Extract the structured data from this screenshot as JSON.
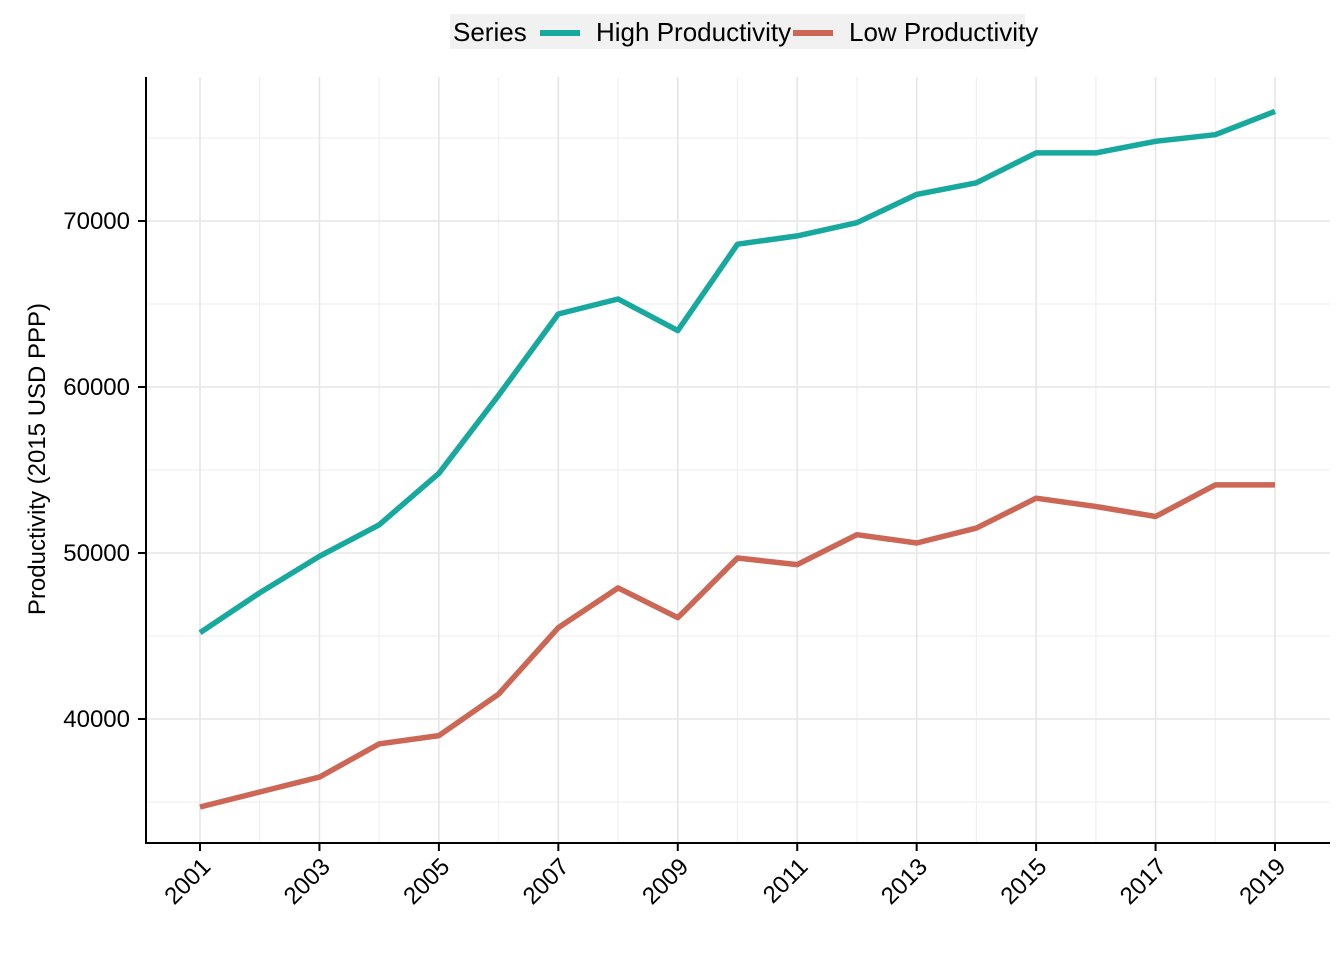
{
  "chart_data": {
    "type": "line",
    "title": "",
    "xlabel": "",
    "ylabel": "Productivity (2015 USD PPP)",
    "x": [
      2001,
      2002,
      2003,
      2004,
      2005,
      2006,
      2007,
      2008,
      2009,
      2010,
      2011,
      2012,
      2013,
      2014,
      2015,
      2016,
      2017,
      2018,
      2019
    ],
    "xticks": [
      2001,
      2003,
      2005,
      2007,
      2009,
      2011,
      2013,
      2015,
      2017,
      2019
    ],
    "xtick_labels": [
      "2001",
      "2003",
      "2005",
      "2007",
      "2009",
      "2011",
      "2013",
      "2015",
      "2017",
      "2019"
    ],
    "yticks": [
      40000,
      50000,
      60000,
      70000
    ],
    "ytick_labels": [
      "40000",
      "50000",
      "60000",
      "70000"
    ],
    "xlim": [
      2000.55,
      2019.45
    ],
    "ylim": [
      34250,
      80500
    ],
    "grid": true,
    "legend": {
      "title": "Series",
      "position": "top"
    },
    "series": [
      {
        "name": "High Productivity",
        "color": "#17a89e",
        "values": [
          45200,
          47600,
          49800,
          51700,
          54800,
          59500,
          64400,
          65300,
          63400,
          68600,
          69100,
          69900,
          71600,
          72300,
          74100,
          74100,
          74800,
          75200,
          76600
        ]
      },
      {
        "name": "Low Productivity",
        "color": "#cc6655",
        "values": [
          34700,
          35600,
          36500,
          38500,
          39000,
          41500,
          45500,
          47900,
          46100,
          49700,
          49300,
          51100,
          50600,
          51500,
          53300,
          52800,
          52200,
          54100,
          54100
        ]
      }
    ]
  }
}
